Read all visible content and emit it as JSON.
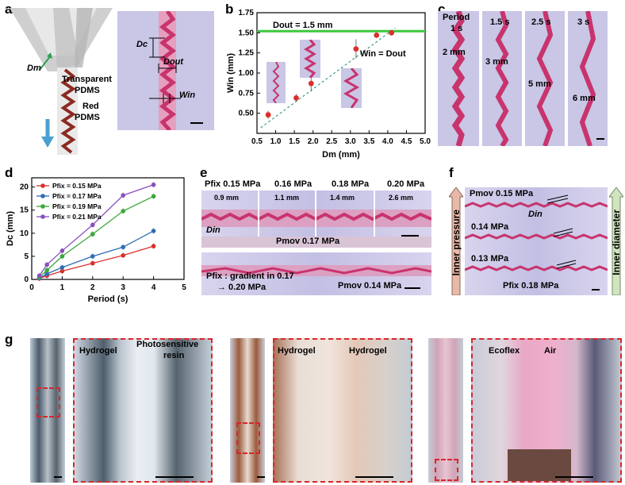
{
  "panels": {
    "a": "a",
    "b": "b",
    "c": "c",
    "d": "d",
    "e": "e",
    "f": "f",
    "g": "g"
  },
  "panel_a": {
    "dc": "Dc",
    "dout": "Dout",
    "dm": "Dm",
    "win": "Win",
    "transparent": "Transparent",
    "pdms1": "PDMS",
    "red": "Red",
    "pdms2": "PDMS"
  },
  "panel_b": {
    "dout_line": "Dout = 1.5 mm",
    "win_eq": "Win = Dout"
  },
  "panel_c": {
    "labels": [
      "Period\n1 s",
      "1.5 s",
      "2.5 s",
      "3 s"
    ],
    "period1": "Period",
    "t1": "1 s",
    "t2": "1.5 s",
    "t3": "2.5 s",
    "t4": "3 s",
    "m1": "2 mm",
    "m2": "3 mm",
    "m3": "5 mm",
    "m4": "6 mm"
  },
  "panel_e": {
    "pfix_label": "Pfix 0.15 MPa",
    "p2": "0.16 MPa",
    "p3": "0.18 MPa",
    "p4": "0.20 MPa",
    "w1": "0.9 mm",
    "w2": "1.1 mm",
    "w3": "1.4 mm",
    "w4": "2.6 mm",
    "din": "Din",
    "pmov": "Pmov 0.17 MPa",
    "grad1": "Pfix : gradient in 0.17",
    "grad2": "→ 0.20 MPa",
    "pmov2": "Pmov 0.14 MPa"
  },
  "panel_f": {
    "pmov": "Pmov 0.15 MPa",
    "din": "Din",
    "p2": "0.14 MPa",
    "p3": "0.13 MPa",
    "pfix": "Pfix 0.18 MPa",
    "inner_pressure": "Inner pressure",
    "inner_diameter": "Inner diameter"
  },
  "panel_g": {
    "g1a": "Hydrogel",
    "g1b": "Photosensitive",
    "g1c": "resin",
    "g2a": "Hydrogel",
    "g2b": "Hydrogel",
    "g3a": "Ecoflex",
    "g3b": "Air"
  },
  "colors": {
    "red_series": "#d9302c",
    "blue_series": "#2f6db5",
    "green_series": "#3aa83a",
    "purple_series": "#8a4fbf",
    "green_line": "#3cc83c"
  },
  "chart_data": [
    {
      "type": "scatter",
      "panel": "b",
      "xlabel": "Dm (mm)",
      "ylabel": "Win (mm)",
      "xlim": [
        0.5,
        5.0
      ],
      "ylim": [
        0.25,
        1.75
      ],
      "xticks": [
        "0.5",
        "1.0",
        "1.5",
        "2.0",
        "2.5",
        "3.0",
        "3.5",
        "4.0",
        "4.5",
        "5.0"
      ],
      "yticks": [
        "0.50",
        "0.75",
        "1.00",
        "1.25",
        "1.50",
        "1.75"
      ],
      "x": [
        0.8,
        1.55,
        1.95,
        3.15,
        3.7,
        4.1
      ],
      "y": [
        0.48,
        0.69,
        0.87,
        1.3,
        1.47,
        1.5
      ],
      "err": [
        0.05,
        0.05,
        0.1,
        0.12,
        0.03,
        0.02
      ],
      "hline": 1.52
    },
    {
      "type": "line",
      "panel": "d",
      "xlabel": "Period (s)",
      "ylabel": "Dc (mm)",
      "xlim": [
        0,
        5
      ],
      "ylim": [
        0,
        22
      ],
      "xticks": [
        "0",
        "1",
        "2",
        "3",
        "4",
        "5"
      ],
      "yticks": [
        "0",
        "5",
        "10",
        "15",
        "20"
      ],
      "x": [
        0.25,
        0.5,
        1,
        2,
        3,
        4
      ],
      "series": [
        {
          "name": "Pfix = 0.15 MPa",
          "values": [
            0.2,
            0.8,
            1.8,
            3.5,
            5.2,
            7.2
          ],
          "color": "#d9302c"
        },
        {
          "name": "Pfix = 0.17 MPa",
          "values": [
            0.3,
            1.2,
            2.6,
            5.0,
            7.0,
            10.5
          ],
          "color": "#2f6db5"
        },
        {
          "name": "Pfix = 0.19 MPa",
          "values": [
            0.5,
            2.0,
            5.0,
            9.8,
            14.8,
            18.0
          ],
          "color": "#3aa83a"
        },
        {
          "name": "Pfix = 0.21 MPa",
          "values": [
            0.8,
            3.2,
            6.2,
            11.8,
            18.2,
            20.5
          ],
          "color": "#8a4fbf"
        }
      ],
      "legend": "top-left"
    }
  ]
}
